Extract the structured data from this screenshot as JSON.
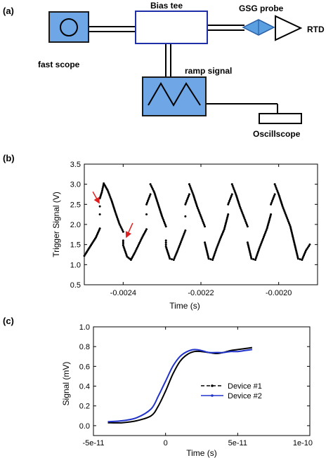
{
  "panel_labels": {
    "a": "(a)",
    "b": "(b)",
    "c": "(c)"
  },
  "diagram": {
    "fast_scope": "fast scope",
    "bias_tee": "Bias tee",
    "gsg_probe": "GSG probe",
    "rtd": "RTD",
    "ramp_signal": "ramp signal",
    "oscilloscope": "Oscillscope",
    "colors": {
      "box_fill": "#6ea6e6",
      "box_stroke": "#1a1a1a",
      "bias_tee_stroke": "#1f2fa8",
      "probe_fill": "#5aa0e0"
    },
    "icons": [
      "circle-icon",
      "ramp-wave-icon",
      "probe-diamond-icon",
      "rtd-triangle-icon"
    ]
  },
  "chart_data": [
    {
      "type": "scatter",
      "xlabel": "Time (s)",
      "ylabel": "Trigger Signal (V)",
      "xlim": [
        -0.0025,
        -0.0019
      ],
      "ylim": [
        0.5,
        3.5
      ],
      "xticks": [
        -0.0024,
        -0.0022,
        -0.002
      ],
      "xtick_labels": [
        "-0.0024",
        "-0.0022",
        "-0.0020"
      ],
      "yticks": [
        0.5,
        1.0,
        1.5,
        2.0,
        2.5,
        3.0,
        3.5
      ],
      "ytick_labels": [
        "0.5",
        "1.0",
        "1.5",
        "2.0",
        "2.5",
        "3.0",
        "3.5"
      ],
      "grid": false,
      "marker_color": "#000000",
      "annotation_color": "#e02020",
      "annotations": [
        {
          "type": "arrow",
          "x": -0.00246,
          "y": 2.5
        },
        {
          "type": "arrow",
          "x": -0.00239,
          "y": 1.65
        }
      ],
      "series": [
        {
          "points": [
            [
              -0.0025,
              1.22
            ],
            [
              -0.002485,
              1.45
            ],
            [
              -0.00247,
              1.68
            ],
            [
              -0.00246,
              1.9
            ],
            [
              -0.00246,
              2.25
            ],
            [
              -0.00246,
              2.45
            ],
            [
              -0.00246,
              2.65
            ],
            [
              -0.002455,
              2.8
            ],
            [
              -0.00245,
              3.02
            ],
            [
              -0.00244,
              2.85
            ],
            [
              -0.00243,
              2.6
            ],
            [
              -0.00242,
              2.3
            ],
            [
              -0.00241,
              2.02
            ],
            [
              -0.0024,
              1.82
            ],
            [
              -0.0024,
              1.6
            ],
            [
              -0.0024,
              1.48
            ],
            [
              -0.00239,
              1.2
            ],
            [
              -0.00238,
              1.12
            ],
            [
              -0.00237,
              1.3
            ],
            [
              -0.00236,
              1.5
            ],
            [
              -0.00235,
              1.7
            ],
            [
              -0.00234,
              1.88
            ],
            [
              -0.00234,
              2.25
            ],
            [
              -0.00234,
              2.5
            ],
            [
              -0.00233,
              2.75
            ],
            [
              -0.00233,
              3.0
            ],
            [
              -0.00232,
              2.8
            ],
            [
              -0.00231,
              2.5
            ],
            [
              -0.0023,
              2.2
            ],
            [
              -0.00229,
              1.95
            ],
            [
              -0.00229,
              1.6
            ],
            [
              -0.00229,
              1.45
            ],
            [
              -0.00228,
              1.15
            ],
            [
              -0.00227,
              1.12
            ],
            [
              -0.00226,
              1.35
            ],
            [
              -0.00225,
              1.6
            ],
            [
              -0.00224,
              1.85
            ],
            [
              -0.00224,
              2.2
            ],
            [
              -0.00224,
              2.5
            ],
            [
              -0.00223,
              2.75
            ],
            [
              -0.00223,
              3.0
            ],
            [
              -0.00222,
              2.75
            ],
            [
              -0.00221,
              2.45
            ],
            [
              -0.0022,
              2.2
            ],
            [
              -0.00219,
              1.95
            ],
            [
              -0.00219,
              1.55
            ],
            [
              -0.00218,
              1.15
            ],
            [
              -0.00217,
              1.12
            ],
            [
              -0.00216,
              1.4
            ],
            [
              -0.00215,
              1.65
            ],
            [
              -0.00214,
              1.88
            ],
            [
              -0.00213,
              2.25
            ],
            [
              -0.00213,
              2.5
            ],
            [
              -0.00212,
              2.75
            ],
            [
              -0.00212,
              3.0
            ],
            [
              -0.00211,
              2.75
            ],
            [
              -0.0021,
              2.45
            ],
            [
              -0.00209,
              2.2
            ],
            [
              -0.00208,
              1.95
            ],
            [
              -0.00208,
              1.55
            ],
            [
              -0.00207,
              1.15
            ],
            [
              -0.00206,
              1.12
            ],
            [
              -0.00205,
              1.4
            ],
            [
              -0.00204,
              1.65
            ],
            [
              -0.00203,
              1.9
            ],
            [
              -0.00202,
              2.25
            ],
            [
              -0.00202,
              2.5
            ],
            [
              -0.00201,
              2.75
            ],
            [
              -0.00201,
              3.0
            ],
            [
              -0.002,
              2.75
            ],
            [
              -0.00199,
              2.45
            ],
            [
              -0.00198,
              2.2
            ],
            [
              -0.00197,
              1.95
            ],
            [
              -0.00196,
              1.55
            ],
            [
              -0.00195,
              1.15
            ],
            [
              -0.00194,
              1.12
            ],
            [
              -0.00193,
              1.35
            ],
            [
              -0.00192,
              1.5
            ]
          ]
        }
      ]
    },
    {
      "type": "line",
      "xlabel": "Time (s)",
      "ylabel": "Signal (mV)",
      "xlim": [
        -5e-11,
        1e-10
      ],
      "ylim": [
        -0.1,
        1.0
      ],
      "xticks": [
        -5e-11,
        0,
        5e-11,
        1e-10
      ],
      "xtick_labels": [
        "-5e-11",
        "0",
        "5e-11",
        "1e-10"
      ],
      "yticks": [
        0.0,
        0.2,
        0.4,
        0.6,
        0.8,
        1.0
      ],
      "ytick_labels": [
        "0.0",
        "0.2",
        "0.4",
        "0.6",
        "0.8",
        "1.0"
      ],
      "grid": false,
      "legend_position": "center-right",
      "series": [
        {
          "name": "Device #1",
          "color": "#000000",
          "x": [
            -4e-11,
            -3e-11,
            -2e-11,
            -1e-11,
            -5e-12,
            0,
            5e-12,
            1e-11,
            1.5e-11,
            2e-11,
            2.5e-11,
            3e-11,
            3.5e-11,
            4e-11,
            4.5e-11,
            5e-11,
            5.5e-11,
            6e-11
          ],
          "y": [
            0.03,
            0.03,
            0.05,
            0.1,
            0.2,
            0.35,
            0.52,
            0.65,
            0.72,
            0.75,
            0.75,
            0.74,
            0.73,
            0.74,
            0.76,
            0.77,
            0.78,
            0.79
          ]
        },
        {
          "name": "Device #2",
          "color": "#2233cc",
          "x": [
            -4e-11,
            -3e-11,
            -2e-11,
            -1e-11,
            -5e-12,
            0,
            5e-12,
            1e-11,
            1.5e-11,
            2e-11,
            2.5e-11,
            3e-11,
            3.5e-11,
            4e-11,
            4.5e-11,
            5e-11,
            5.5e-11,
            6e-11
          ],
          "y": [
            0.04,
            0.05,
            0.08,
            0.17,
            0.3,
            0.45,
            0.6,
            0.7,
            0.75,
            0.77,
            0.76,
            0.74,
            0.74,
            0.74,
            0.75,
            0.75,
            0.76,
            0.77
          ]
        }
      ]
    }
  ]
}
